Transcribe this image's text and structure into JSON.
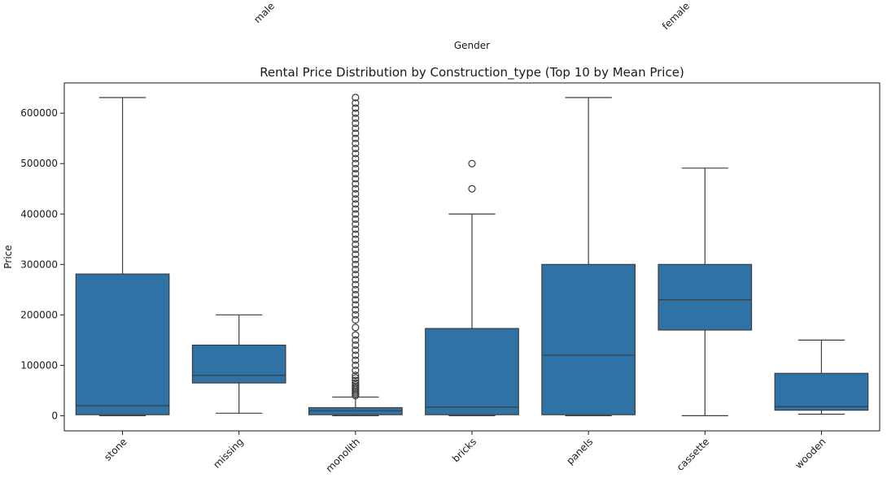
{
  "colors": {
    "box_fill": "#2f72a5",
    "box_edge": "#3d3d3d",
    "axis": "#1a1a1a",
    "flier": "#3d3d3d"
  },
  "top_panel": {
    "xlabel": "Gender",
    "tick_labels": [
      "male",
      "female"
    ]
  },
  "chart_data": {
    "type": "box",
    "title": "Rental Price Distribution by Construction_type (Top 10 by Mean Price)",
    "xlabel": "",
    "ylabel": "Price",
    "ylim": [
      -30000,
      660000
    ],
    "yticks": [
      0,
      100000,
      200000,
      300000,
      400000,
      500000,
      600000
    ],
    "categories": [
      "stone",
      "missing",
      "monolith",
      "bricks",
      "panels",
      "cassette",
      "wooden"
    ],
    "boxes": [
      {
        "category": "stone",
        "whisker_low": 0,
        "q1": 2000,
        "median": 20000,
        "q3": 281000,
        "whisker_high": 631000,
        "fliers": []
      },
      {
        "category": "missing",
        "whisker_low": 5000,
        "q1": 65000,
        "median": 80000,
        "q3": 140000,
        "whisker_high": 200000,
        "fliers": []
      },
      {
        "category": "monolith",
        "whisker_low": 0,
        "q1": 2000,
        "median": 10000,
        "q3": 16000,
        "whisker_high": 37000,
        "fliers": [
          40000,
          43000,
          46000,
          49000,
          52000,
          55000,
          58000,
          61000,
          65000,
          70000,
          75000,
          80000,
          90000,
          100000,
          110000,
          120000,
          130000,
          140000,
          150000,
          160000,
          175000,
          190000,
          200000,
          210000,
          220000,
          230000,
          240000,
          250000,
          260000,
          270000,
          280000,
          290000,
          300000,
          310000,
          320000,
          330000,
          340000,
          350000,
          360000,
          370000,
          380000,
          390000,
          400000,
          410000,
          420000,
          430000,
          440000,
          450000,
          460000,
          470000,
          480000,
          490000,
          500000,
          510000,
          520000,
          530000,
          540000,
          550000,
          560000,
          570000,
          580000,
          590000,
          600000,
          610000,
          620000,
          631000
        ]
      },
      {
        "category": "bricks",
        "whisker_low": 0,
        "q1": 2000,
        "median": 17000,
        "q3": 173000,
        "whisker_high": 400000,
        "fliers": [
          450000,
          500000
        ]
      },
      {
        "category": "panels",
        "whisker_low": 0,
        "q1": 2000,
        "median": 120000,
        "q3": 300000,
        "whisker_high": 631000,
        "fliers": []
      },
      {
        "category": "cassette",
        "whisker_low": 0,
        "q1": 170000,
        "median": 230000,
        "q3": 300000,
        "whisker_high": 491000,
        "fliers": []
      },
      {
        "category": "wooden",
        "whisker_low": 3000,
        "q1": 11000,
        "median": 18000,
        "q3": 84000,
        "whisker_high": 150000,
        "fliers": []
      }
    ]
  }
}
